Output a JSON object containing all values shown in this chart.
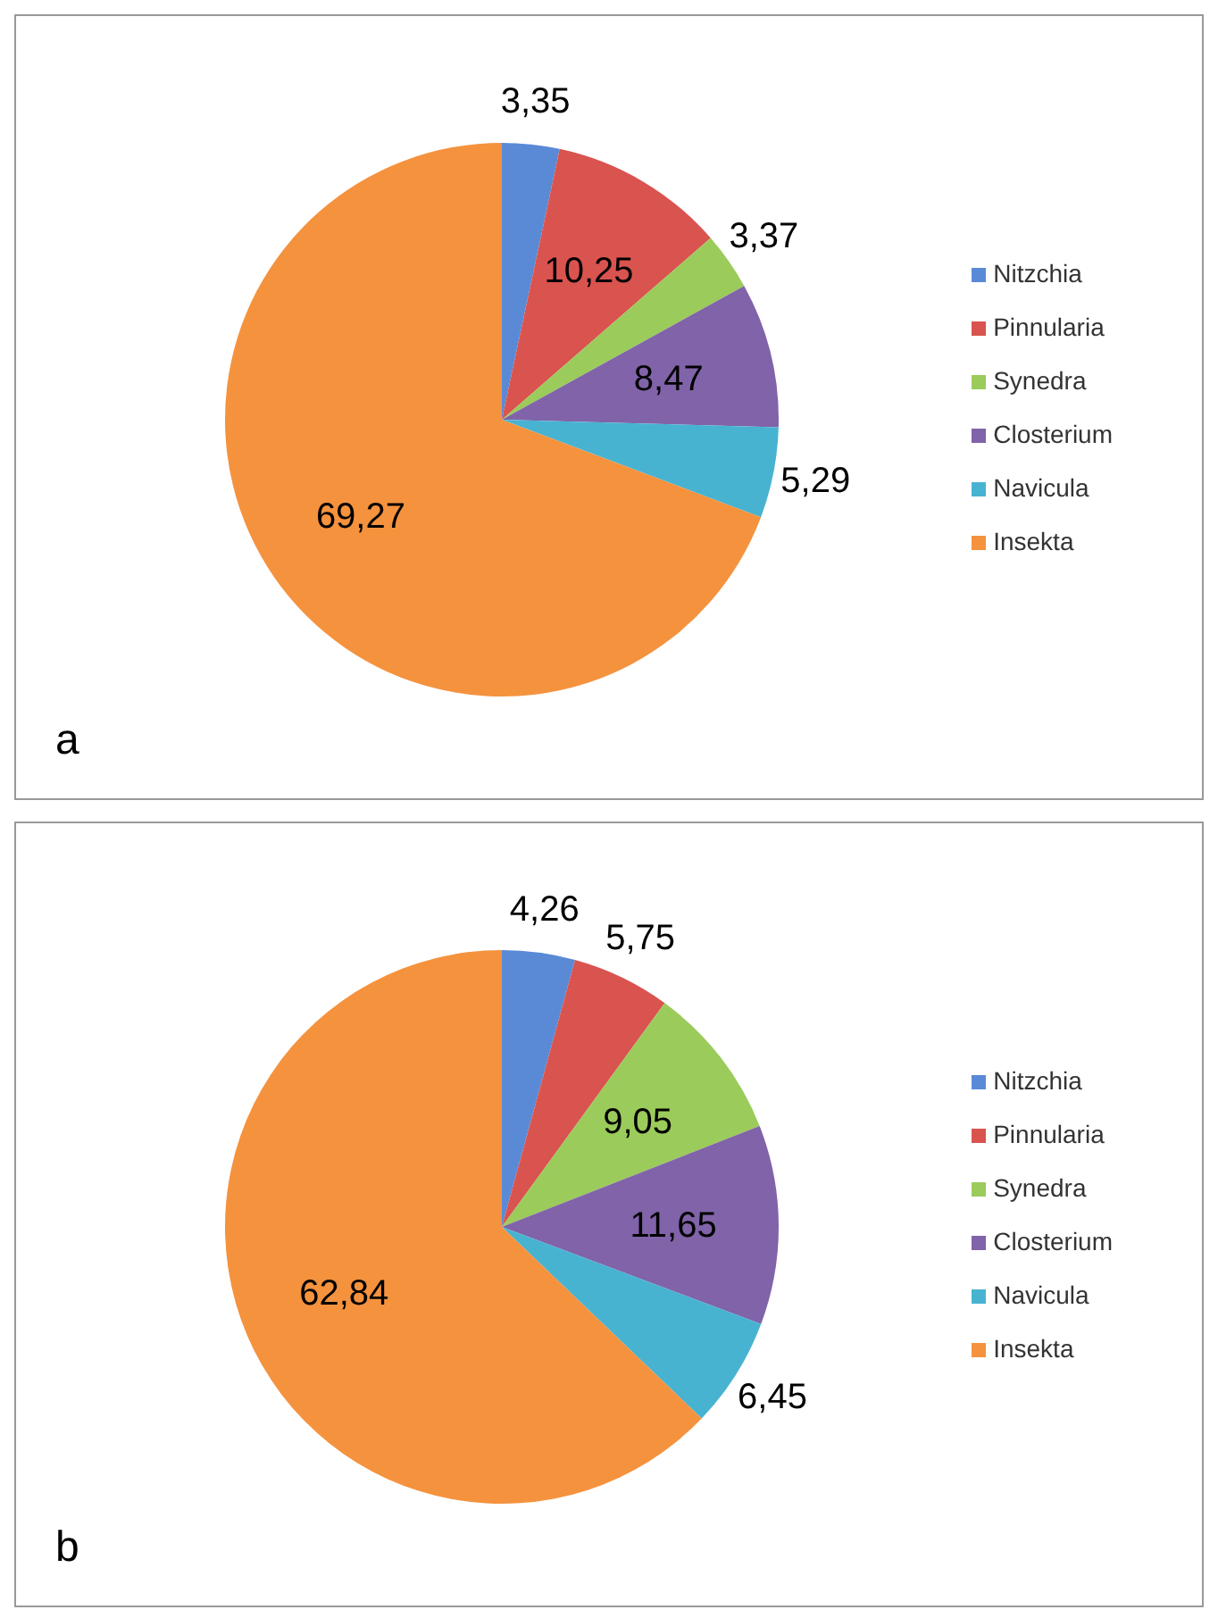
{
  "chart_data": [
    {
      "type": "pie",
      "categories": [
        "Nitzchia",
        "Pinnularia",
        "Synedra",
        "Closterium",
        "Navicula",
        "Insekta"
      ],
      "values": [
        3.35,
        10.25,
        3.37,
        8.47,
        5.29,
        69.27
      ],
      "value_labels": [
        "3,35",
        "10,25",
        "3,37",
        "8,47",
        "5,29",
        "69,27"
      ],
      "colors": [
        "#5a8ad6",
        "#d9534f",
        "#9bcb5b",
        "#8063a8",
        "#47b3d1",
        "#f5923e"
      ],
      "legend": "right",
      "annotations": [
        "a"
      ]
    },
    {
      "type": "pie",
      "categories": [
        "Nitzchia",
        "Pinnularia",
        "Synedra",
        "Closterium",
        "Navicula",
        "Insekta"
      ],
      "values": [
        4.26,
        5.75,
        9.05,
        11.65,
        6.45,
        62.84
      ],
      "value_labels": [
        "4,26",
        "5,75",
        "9,05",
        "11,65",
        "6,45",
        "62,84"
      ],
      "colors": [
        "#5a8ad6",
        "#d9534f",
        "#9bcb5b",
        "#8063a8",
        "#47b3d1",
        "#f5923e"
      ],
      "legend": "right",
      "annotations": [
        "b"
      ]
    }
  ]
}
